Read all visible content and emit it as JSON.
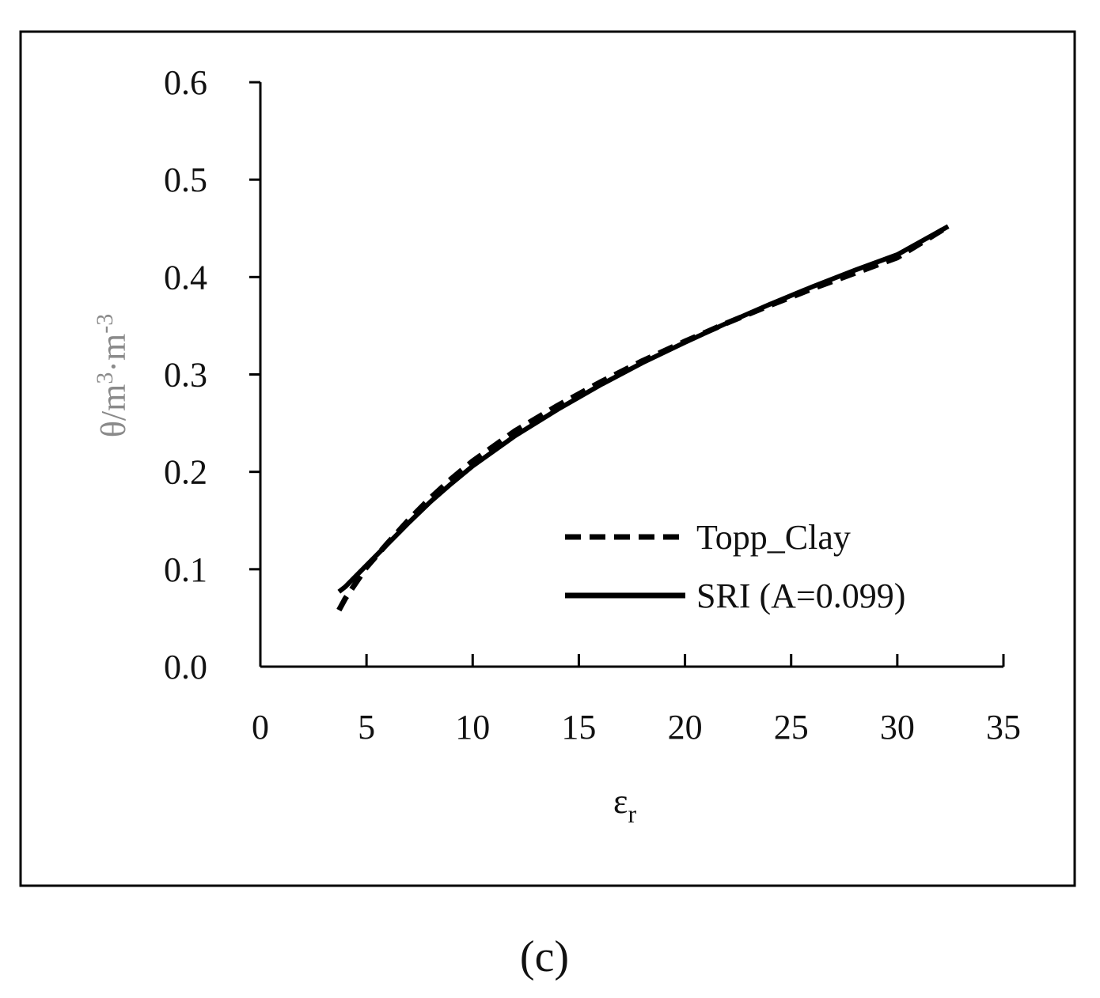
{
  "chart_data": {
    "type": "line",
    "title": "",
    "xlabel": {
      "main": "ε",
      "sub": "r"
    },
    "ylabel": {
      "main": "θ/m",
      "sup1": "3",
      "dot": "·m",
      "sup2": "-3"
    },
    "xlim": [
      0,
      35
    ],
    "ylim": [
      0.0,
      0.6
    ],
    "xticks": [
      "0",
      "5",
      "10",
      "15",
      "20",
      "25",
      "30",
      "35"
    ],
    "yticks": [
      "0.0",
      "0.1",
      "0.2",
      "0.3",
      "0.4",
      "0.5",
      "0.6"
    ],
    "grid": false,
    "legend_position": "lower-right",
    "series": [
      {
        "name": "Topp_Clay",
        "style": "dashed",
        "color": "#000000",
        "x": [
          3.7,
          4,
          5,
          6,
          7,
          8,
          9,
          10,
          12,
          14,
          16,
          18,
          20,
          22,
          24,
          26,
          28,
          30,
          32.4
        ],
        "y": [
          0.058,
          0.07,
          0.102,
          0.127,
          0.151,
          0.173,
          0.193,
          0.211,
          0.242,
          0.268,
          0.292,
          0.314,
          0.334,
          0.353,
          0.371,
          0.388,
          0.404,
          0.42,
          0.452
        ]
      },
      {
        "name": "SRI (A=0.099)",
        "style": "solid",
        "color": "#000000",
        "x": [
          3.7,
          4,
          5,
          6,
          7,
          8,
          9,
          10,
          12,
          14,
          16,
          18,
          20,
          22,
          24,
          26,
          28,
          30,
          32.4
        ],
        "y": [
          0.077,
          0.082,
          0.104,
          0.126,
          0.148,
          0.169,
          0.188,
          0.206,
          0.237,
          0.264,
          0.289,
          0.312,
          0.333,
          0.353,
          0.372,
          0.39,
          0.407,
          0.423,
          0.452
        ]
      }
    ]
  },
  "panel_label": "(c)",
  "colors": {
    "axis": "#000000",
    "ylabel": "#8a8a8a",
    "frame": "#000000"
  }
}
